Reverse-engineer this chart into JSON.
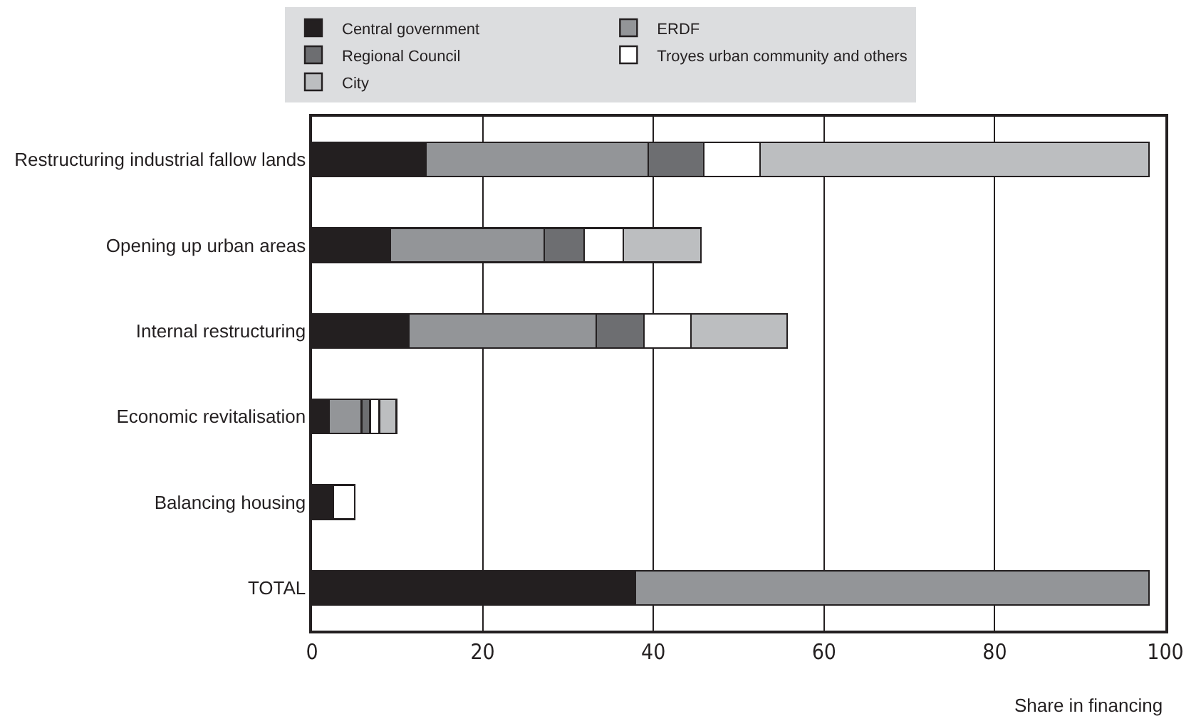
{
  "chart_data": {
    "type": "bar",
    "orientation": "horizontal",
    "stacked": true,
    "categories": [
      "Restructuring industrial fallow lands",
      "Opening up urban areas",
      "Internal restructuring",
      "Economic revitalisation",
      "Balancing housing",
      "TOTAL"
    ],
    "series": [
      {
        "name": "Central government",
        "color": "#231f20",
        "values": [
          13.3,
          9.2,
          11.3,
          2.0,
          2.5,
          37.9
        ]
      },
      {
        "name": "ERDF",
        "color": "#939598",
        "values": [
          26.1,
          18.0,
          22.0,
          3.8,
          null,
          60.2
        ]
      },
      {
        "name": "Regional Council",
        "color": "#6d6e71",
        "values": [
          6.5,
          4.7,
          5.6,
          1.0,
          null,
          null
        ]
      },
      {
        "name": "Troyes urban community and others",
        "color": "#ffffff",
        "values": [
          6.6,
          4.6,
          5.5,
          1.1,
          2.5,
          null
        ]
      },
      {
        "name": "City",
        "color": "#bcbec0",
        "values": [
          45.6,
          9.1,
          11.3,
          2.0,
          null,
          null
        ]
      }
    ],
    "xlabel": "Share in financing",
    "xlim": [
      0,
      100
    ],
    "xticks": [
      0,
      20,
      40,
      60,
      80,
      100
    ],
    "grid": "x",
    "legend": "top"
  }
}
